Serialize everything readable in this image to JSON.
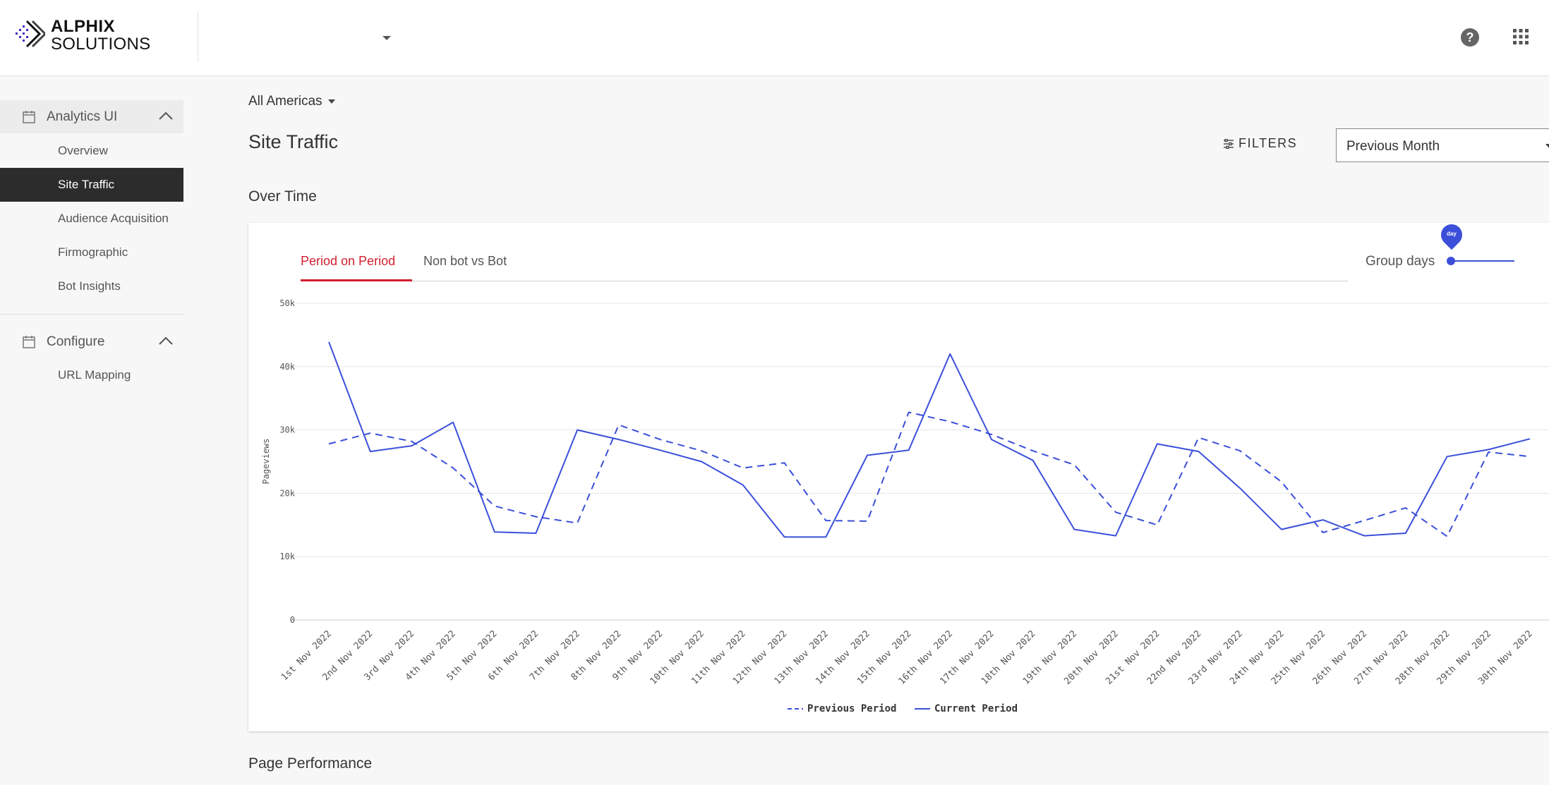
{
  "brand": {
    "line1": "ALPHIX",
    "line2": "SOLUTIONS"
  },
  "header": {
    "help_icon": "help-icon",
    "apps_icon": "apps-grid-icon"
  },
  "sidebar": {
    "groups": [
      {
        "label": "Analytics UI",
        "icon": "calendar-icon",
        "expanded": true,
        "items": [
          "Overview",
          "Site Traffic",
          "Audience Acquisition",
          "Firmographic",
          "Bot Insights"
        ]
      },
      {
        "label": "Configure",
        "icon": "calendar-icon",
        "expanded": true,
        "items": [
          "URL Mapping"
        ]
      }
    ],
    "active_item": "Site Traffic"
  },
  "main": {
    "region": "All Americas",
    "title": "Site Traffic",
    "filters_label": "FILTERS",
    "period": "Previous Month",
    "section_over_time": "Over Time",
    "section_page_performance": "Page Performance",
    "tabs": [
      "Period on Period",
      "Non bot vs Bot"
    ],
    "active_tab": "Period on Period",
    "group_label": "Group days",
    "slider_value_label": "day"
  },
  "colors": {
    "accent": "#d21f2f",
    "series": "#3b4fd9",
    "active_nav": "#2c2c2c"
  },
  "chart_data": {
    "type": "line",
    "ylabel": "Pageviews",
    "xlabel": "",
    "ylim": [
      0,
      50000
    ],
    "y_ticks": [
      "0",
      "10k",
      "20k",
      "30k",
      "40k",
      "50k"
    ],
    "grid": true,
    "legend_position": "bottom",
    "categories": [
      "1st Nov 2022",
      "2nd Nov 2022",
      "3rd Nov 2022",
      "4th Nov 2022",
      "5th Nov 2022",
      "6th Nov 2022",
      "7th Nov 2022",
      "8th Nov 2022",
      "9th Nov 2022",
      "10th Nov 2022",
      "11th Nov 2022",
      "12th Nov 2022",
      "13th Nov 2022",
      "14th Nov 2022",
      "15th Nov 2022",
      "16th Nov 2022",
      "17th Nov 2022",
      "18th Nov 2022",
      "19th Nov 2022",
      "20th Nov 2022",
      "21st Nov 2022",
      "22nd Nov 2022",
      "23rd Nov 2022",
      "24th Nov 2022",
      "25th Nov 2022",
      "26th Nov 2022",
      "27th Nov 2022",
      "28th Nov 2022",
      "29th Nov 2022",
      "30th Nov 2022"
    ],
    "series": [
      {
        "name": "Previous Period",
        "style": "dashed",
        "values": [
          27800,
          29500,
          28200,
          24000,
          18000,
          16300,
          15300,
          30800,
          28500,
          26700,
          24000,
          24800,
          15700,
          15600,
          32800,
          31300,
          29300,
          26700,
          24500,
          17000,
          15000,
          28800,
          26700,
          21800,
          13800,
          15700,
          17700,
          13200,
          26500,
          25800
        ]
      },
      {
        "name": "Current Period",
        "style": "solid",
        "values": [
          43900,
          26600,
          27500,
          31200,
          13900,
          13700,
          30000,
          28500,
          26800,
          25000,
          21300,
          13100,
          13100,
          26000,
          26800,
          42000,
          28500,
          25200,
          14300,
          13300,
          27800,
          26600,
          20800,
          14300,
          15800,
          13300,
          13700,
          25800,
          26900,
          28600
        ]
      }
    ]
  }
}
